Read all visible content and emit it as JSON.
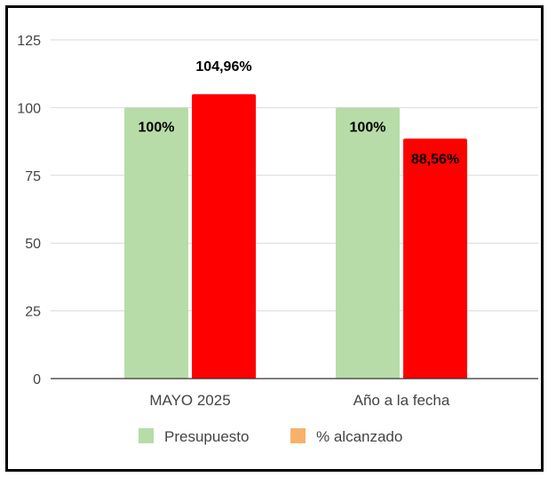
{
  "chart_data": {
    "type": "bar",
    "categories": [
      "MAYO 2025",
      "Año a la fecha"
    ],
    "series": [
      {
        "name": "Presupuesto",
        "values": [
          100,
          100
        ],
        "data_labels": [
          "100%",
          "100%"
        ],
        "color": "#b7dca8",
        "legend_color": "#b7dca8"
      },
      {
        "name": "% alcanzado",
        "values": [
          104.96,
          88.56
        ],
        "data_labels": [
          "104,96%",
          "88,56%"
        ],
        "color": "#ff0000",
        "legend_color": "#f6b26b"
      }
    ],
    "ylim": [
      0,
      125
    ],
    "yticks": [
      0,
      25,
      50,
      75,
      100,
      125
    ],
    "grid": true,
    "legend_position": "bottom",
    "title": "",
    "xlabel": "",
    "ylabel": ""
  }
}
